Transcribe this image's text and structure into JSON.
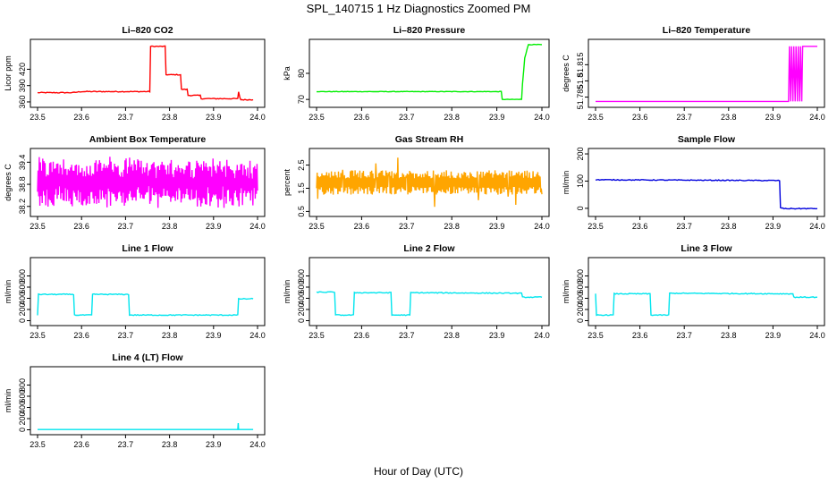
{
  "figure": {
    "title": "SPL_140715  1 Hz Diagnostics Zoomed PM",
    "xlabel": "Hour of Day (UTC)"
  },
  "chart_data": [
    {
      "type": "line",
      "title": "Li–820 CO2",
      "ylabel": "Licor ppm",
      "color": "#ff0000",
      "xlim": [
        23.5,
        24.0
      ],
      "ylim": [
        355,
        470
      ],
      "yticks": [
        360,
        390,
        420
      ],
      "xticks": [
        "23.5",
        "23.6",
        "23.7",
        "23.8",
        "23.9",
        "24.0"
      ],
      "noise": 0.8,
      "series": [
        {
          "name": "CO2",
          "x": [
            23.5,
            23.58,
            23.6,
            23.755,
            23.757,
            23.79,
            23.792,
            23.825,
            23.827,
            23.84,
            23.842,
            23.87,
            23.872,
            23.955,
            23.957,
            23.96,
            23.962,
            23.99
          ],
          "y": [
            377,
            377,
            379,
            379,
            462,
            462,
            410,
            410,
            383,
            383,
            372,
            372,
            366,
            366,
            378,
            368,
            364,
            364
          ]
        }
      ]
    },
    {
      "type": "line",
      "title": "Li–820 Pressure",
      "ylabel": "kPa",
      "color": "#00ee00",
      "xlim": [
        23.5,
        24.0
      ],
      "ylim": [
        68,
        92
      ],
      "yticks": [
        70,
        80
      ],
      "xticks": [
        "23.5",
        "23.6",
        "23.7",
        "23.8",
        "23.9",
        "24.0"
      ],
      "noise": 0.1,
      "series": [
        {
          "name": "Pressure",
          "x": [
            23.5,
            23.91,
            23.912,
            23.955,
            23.957,
            23.962,
            23.97,
            24.0
          ],
          "y": [
            73,
            73,
            70,
            70,
            76,
            86,
            91,
            91
          ]
        }
      ]
    },
    {
      "type": "line",
      "title": "Li–820 Temperature",
      "ylabel": "degrees C",
      "color": "#ff00ff",
      "xlim": [
        23.5,
        24.0
      ],
      "ylim": [
        51.778,
        51.836
      ],
      "yticks": [
        51.785,
        51.8,
        51.815
      ],
      "xticks": [
        "23.5",
        "23.6",
        "23.7",
        "23.8",
        "23.9",
        "24.0"
      ],
      "noise": 0,
      "series": [
        {
          "name": "Temperature",
          "x": [
            23.5,
            23.935,
            23.937,
            23.94,
            23.942,
            23.945,
            23.947,
            23.95,
            23.952,
            23.955,
            23.957,
            23.96,
            23.962,
            23.965,
            23.967,
            24.0
          ],
          "y": [
            51.781,
            51.781,
            51.832,
            51.781,
            51.832,
            51.781,
            51.832,
            51.781,
            51.832,
            51.781,
            51.832,
            51.781,
            51.832,
            51.781,
            51.832,
            51.832
          ]
        }
      ]
    },
    {
      "type": "line",
      "title": "Ambient Box Temperature",
      "ylabel": "degrees C",
      "color": "#ff00ff",
      "xlim": [
        23.5,
        24.0
      ],
      "ylim": [
        38.0,
        39.7
      ],
      "yticks": [
        38.2,
        38.8,
        39.4
      ],
      "xticks": [
        "23.5",
        "23.6",
        "23.7",
        "23.8",
        "23.9",
        "24.0"
      ],
      "noise": 0,
      "series": [
        {
          "name": "Box T",
          "x": [
            23.5,
            24.0
          ],
          "y": [
            38.6,
            38.6
          ]
        }
      ]
    },
    {
      "type": "line",
      "title": "Gas Stream RH",
      "ylabel": "percent",
      "color": "#ffa500",
      "xlim": [
        23.5,
        24.0
      ],
      "ylim": [
        0.4,
        3.1
      ],
      "yticks": [
        0.5,
        1.5,
        2.5
      ],
      "xticks": [
        "23.5",
        "23.6",
        "23.7",
        "23.8",
        "23.9",
        "24.0"
      ],
      "noise": 0,
      "series": [
        {
          "name": "RH",
          "x": [
            23.5,
            24.0
          ],
          "y": [
            1.75,
            1.75
          ]
        }
      ]
    },
    {
      "type": "line",
      "title": "Sample Flow",
      "ylabel": "ml/min",
      "color": "#0000dd",
      "xlim": [
        23.5,
        24.0
      ],
      "ylim": [
        -20,
        210
      ],
      "yticks": [
        0,
        100,
        200
      ],
      "xticks": [
        "23.5",
        "23.6",
        "23.7",
        "23.8",
        "23.9",
        "24.0"
      ],
      "noise": 1.5,
      "series": [
        {
          "name": "Sample",
          "x": [
            23.5,
            23.915,
            23.917,
            23.925,
            24.0
          ],
          "y": [
            105,
            102,
            2,
            -1,
            -1
          ]
        }
      ]
    },
    {
      "type": "line",
      "title": "Line 1 Flow",
      "ylabel": "ml/min",
      "color": "#00e5ee",
      "xlim": [
        23.5,
        24.0
      ],
      "ylim": [
        -40,
        1080
      ],
      "yticks": [
        0,
        200,
        400,
        600,
        800
      ],
      "xticks": [
        "23.5",
        "23.6",
        "23.7",
        "23.8",
        "23.9",
        "24.0"
      ],
      "noise": 8,
      "series": [
        {
          "name": "Line 1",
          "x": [
            23.5,
            23.502,
            23.582,
            23.584,
            23.623,
            23.625,
            23.707,
            23.709,
            23.955,
            23.957,
            23.99
          ],
          "y": [
            100,
            470,
            470,
            100,
            100,
            470,
            470,
            100,
            100,
            390,
            390
          ]
        }
      ]
    },
    {
      "type": "line",
      "title": "Line 2 Flow",
      "ylabel": "ml/min",
      "color": "#00e5ee",
      "xlim": [
        23.5,
        24.0
      ],
      "ylim": [
        -40,
        1080
      ],
      "yticks": [
        0,
        200,
        400,
        600,
        800
      ],
      "xticks": [
        "23.5",
        "23.6",
        "23.7",
        "23.8",
        "23.9",
        "24.0"
      ],
      "noise": 8,
      "series": [
        {
          "name": "Line 2",
          "x": [
            23.5,
            23.54,
            23.542,
            23.582,
            23.584,
            23.665,
            23.667,
            23.707,
            23.709,
            23.955,
            23.957,
            24.0
          ],
          "y": [
            510,
            510,
            100,
            100,
            500,
            500,
            100,
            100,
            500,
            490,
            420,
            420
          ]
        }
      ]
    },
    {
      "type": "line",
      "title": "Line 3 Flow",
      "ylabel": "ml/min",
      "color": "#00e5ee",
      "xlim": [
        23.5,
        24.0
      ],
      "ylim": [
        -40,
        1080
      ],
      "yticks": [
        0,
        200,
        400,
        600,
        800
      ],
      "xticks": [
        "23.5",
        "23.6",
        "23.7",
        "23.8",
        "23.9",
        "24.0"
      ],
      "noise": 8,
      "series": [
        {
          "name": "Line 3",
          "x": [
            23.5,
            23.502,
            23.54,
            23.542,
            23.623,
            23.625,
            23.665,
            23.667,
            23.945,
            23.947,
            24.0
          ],
          "y": [
            480,
            100,
            100,
            480,
            480,
            100,
            100,
            490,
            480,
            420,
            420
          ]
        }
      ]
    },
    {
      "type": "line",
      "title": "Line 4 (LT) Flow",
      "ylabel": "ml/min",
      "color": "#00e5ee",
      "xlim": [
        23.5,
        24.0
      ],
      "ylim": [
        -40,
        1080
      ],
      "yticks": [
        0,
        200,
        400,
        600,
        800
      ],
      "xticks": [
        "23.5",
        "23.6",
        "23.7",
        "23.8",
        "23.9",
        "24.0"
      ],
      "noise": 0,
      "series": [
        {
          "name": "Line 4",
          "x": [
            23.5,
            23.955,
            23.956,
            23.957,
            23.958,
            23.99
          ],
          "y": [
            5,
            5,
            120,
            5,
            5,
            5
          ]
        }
      ]
    }
  ]
}
